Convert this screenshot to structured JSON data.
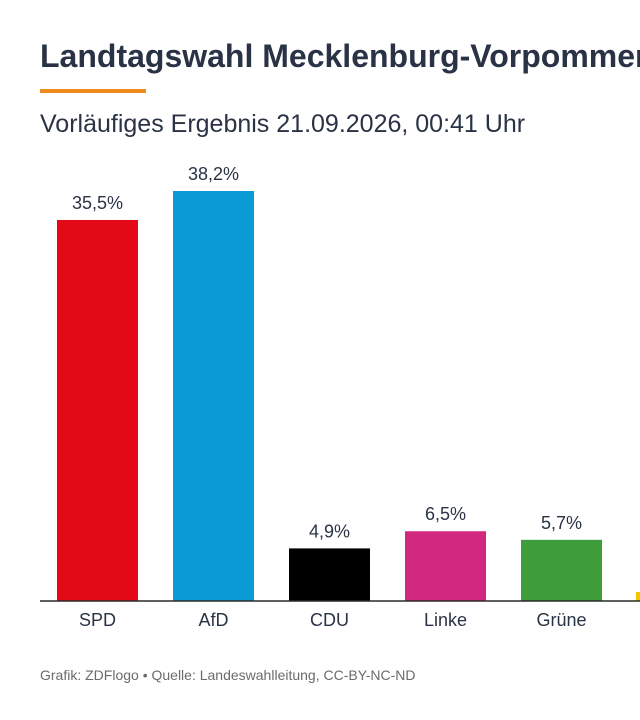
{
  "header": {
    "title": "Landtagswahl Mecklenburg-Vorpommern",
    "subtitle": "Vorläufiges Ergebnis 21.09.2026, 00:41 Uhr"
  },
  "footer": {
    "source": "Grafik: ZDFlogo • Quelle: Landeswahlleitung, CC-BY-NC-ND"
  },
  "chart_data": {
    "type": "bar",
    "title": "Landtagswahl Mecklenburg-Vorpommern",
    "subtitle": "Vorläufiges Ergebnis 21.09.2026, 00:41 Uhr",
    "categories": [
      "SPD",
      "AfD",
      "CDU",
      "Linke",
      "Grüne"
    ],
    "values": [
      35.5,
      38.2,
      4.9,
      6.5,
      5.7
    ],
    "value_labels": [
      "35,5%",
      "38,2%",
      "4,9%",
      "6,5%",
      "5,7%"
    ],
    "colors": [
      "#e30a17",
      "#0a9bd6",
      "#000000",
      "#d2287f",
      "#3e9d3a"
    ],
    "cut_off_next_bar_color": "#f5c400",
    "unit": "%",
    "xlabel": "",
    "ylabel": "",
    "ylim": [
      0,
      40
    ],
    "grid": false
  }
}
